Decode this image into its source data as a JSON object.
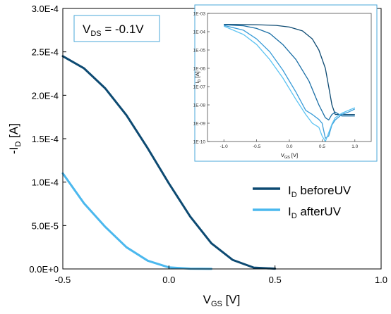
{
  "chart_data": [
    {
      "type": "line",
      "title": "",
      "annotation": {
        "main": "V",
        "sub": "DS",
        "rest": " = -0.1V"
      },
      "xlabel": {
        "main": "V",
        "sub": "GS",
        "rest": " [V]"
      },
      "ylabel": {
        "main": "-I",
        "sub": "D",
        "rest": " [A]"
      },
      "xlim": [
        -0.5,
        1.0
      ],
      "ylim": [
        0,
        0.0003
      ],
      "xticks": [
        -0.5,
        0.0,
        0.5,
        1.0
      ],
      "xtick_labels": [
        "-0.5",
        "0.0",
        "0.5",
        "1.0"
      ],
      "yticks": [
        0,
        5e-05,
        0.0001,
        0.00015,
        0.0002,
        0.00025,
        0.0003
      ],
      "ytick_labels": [
        "0.0E+0",
        "5.0E-5",
        "1.0E-4",
        "1.5E-4",
        "2.0E-4",
        "2.5E-4",
        "3.0E-4"
      ],
      "legend_position": "bottom-right",
      "series": [
        {
          "name": {
            "main": "I",
            "sub": "D",
            "rest": " beforeUV"
          },
          "color": "#0d4a72",
          "x": [
            -0.5,
            -0.4,
            -0.3,
            -0.2,
            -0.1,
            0.0,
            0.1,
            0.2,
            0.3,
            0.4,
            0.5
          ],
          "y": [
            0.000245,
            0.000231,
            0.000208,
            0.000177,
            0.000139,
            9.85e-05,
            6.05e-05,
            2.95e-05,
            1.05e-05,
            1.5e-06,
            3e-07
          ]
        },
        {
          "name": {
            "main": "I",
            "sub": "D",
            "rest": " afterUV"
          },
          "color": "#4bb8ee",
          "x": [
            -0.5,
            -0.4,
            -0.3,
            -0.2,
            -0.1,
            0.0,
            0.1,
            0.2
          ],
          "y": [
            0.00011,
            7.55e-05,
            4.85e-05,
            2.5e-05,
            9.5e-06,
            1.8e-06,
            3e-07,
            1e-07
          ]
        }
      ]
    },
    {
      "type": "line",
      "title": "",
      "xlabel": {
        "main": "V",
        "sub": "GS",
        "rest": " [V]"
      },
      "ylabel": {
        "main": "I",
        "sub": "D",
        "rest": " [A]"
      },
      "log_y": true,
      "xlim": [
        -1.25,
        1.25
      ],
      "ylim_exp": [
        -10,
        -3
      ],
      "xticks": [
        -1.0,
        -0.5,
        0.0,
        0.5,
        1.0
      ],
      "xtick_labels": [
        "-1.0",
        "-0.5",
        "0.0",
        "0.5",
        "1.0"
      ],
      "ytick_exps": [
        -10,
        -9,
        -8,
        -7,
        -6,
        -5,
        -4,
        -3
      ],
      "ytick_labels": [
        "1E-10",
        "1E-09",
        "1E-08",
        "1E-07",
        "1E-06",
        "1E-05",
        "1E-04",
        "1E-03"
      ],
      "series": [
        {
          "color": "#0d4a72",
          "x": [
            -1.0,
            -0.5,
            -0.2,
            0.0,
            0.2,
            0.35,
            0.45,
            0.55,
            0.6,
            0.65,
            0.7,
            0.8,
            0.9,
            1.0
          ],
          "y": [
            0.00025,
            0.00024,
            0.00022,
            0.00018,
            0.00011,
            4e-05,
            1e-05,
            1e-06,
            1e-07,
            1e-08,
            3e-09,
            3e-09,
            3e-09,
            3e-09
          ]
        },
        {
          "color": "#1a6ea5",
          "x": [
            -1.0,
            -0.7,
            -0.5,
            -0.3,
            -0.1,
            0.1,
            0.3,
            0.45,
            0.55,
            0.6,
            0.65,
            0.7,
            0.8,
            0.9,
            1.0
          ],
          "y": [
            0.00024,
            0.00021,
            0.00015,
            8e-05,
            2e-05,
            3e-06,
            2e-07,
            1e-08,
            2e-09,
            1.5e-09,
            3e-09,
            4e-09,
            2.5e-09,
            2.5e-09,
            2.5e-09
          ]
        },
        {
          "color": "#3a9cd8",
          "x": [
            -1.0,
            -0.7,
            -0.5,
            -0.3,
            -0.1,
            0.1,
            0.25,
            0.35,
            0.45,
            0.5,
            0.55,
            0.6,
            0.65,
            0.7,
            0.8,
            0.9,
            1.0
          ],
          "y": [
            0.00022,
            0.00012,
            4e-05,
            8e-06,
            8e-07,
            5e-08,
            5e-09,
            3e-09,
            1.6e-09,
            1e-09,
            1.5e-10,
            2e-10,
            8e-10,
            1.5e-09,
            3e-09,
            4e-09,
            6e-09
          ]
        },
        {
          "color": "#5cc3f2",
          "x": [
            -1.0,
            -0.7,
            -0.5,
            -0.3,
            -0.1,
            0.1,
            0.25,
            0.35,
            0.45,
            0.5,
            0.55,
            0.6,
            0.65,
            0.7,
            0.8,
            0.9,
            1.0
          ],
          "y": [
            0.0002,
            7e-05,
            2e-05,
            3e-06,
            3e-07,
            2e-08,
            3e-09,
            1e-09,
            6e-10,
            2e-10,
            1e-10,
            3e-10,
            9e-10,
            2e-09,
            3.5e-09,
            5e-09,
            7e-09
          ]
        }
      ]
    }
  ]
}
